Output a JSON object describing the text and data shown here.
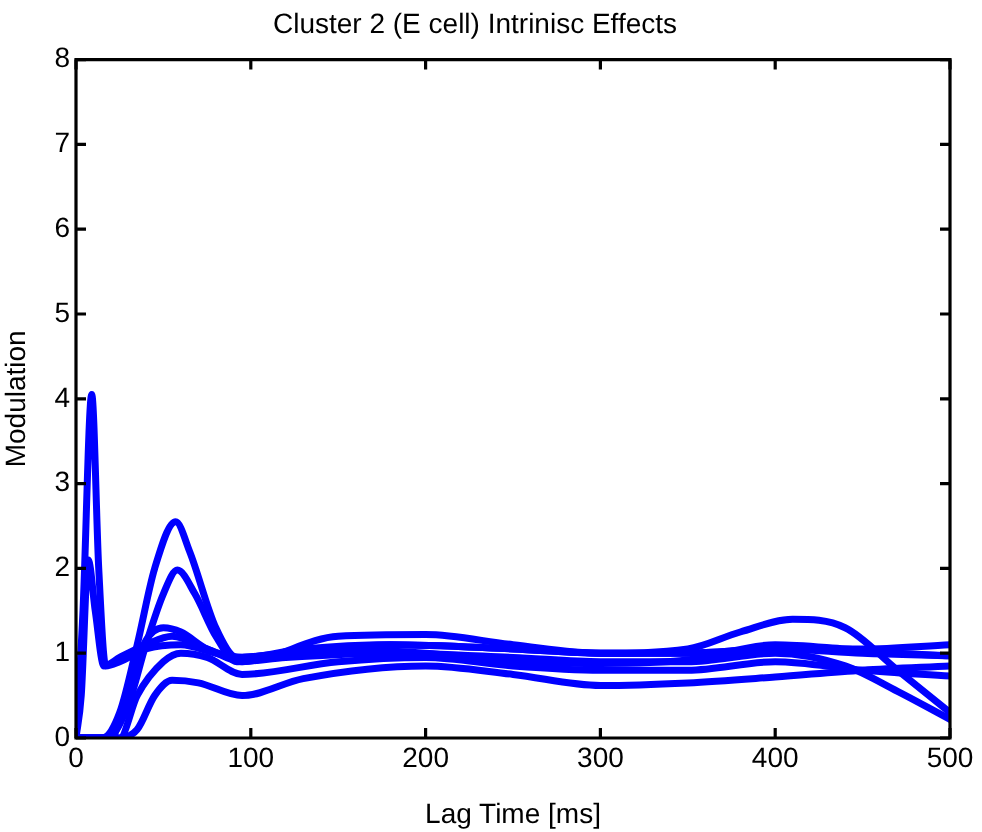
{
  "chart_data": {
    "type": "line",
    "title": "Cluster 2 (E cell) Intrinisc Effects",
    "xlabel": "Lag Time [ms]",
    "ylabel": "Modulation",
    "xlim": [
      0,
      500
    ],
    "xticks": [
      0,
      100,
      200,
      300,
      400,
      500
    ],
    "ylim": [
      0,
      8
    ],
    "yticks": [
      0,
      1,
      2,
      3,
      4,
      5,
      6,
      7,
      8
    ],
    "grid": false,
    "legend": false,
    "marker": "none",
    "line_style": "solid",
    "series": [
      {
        "color": "#0000ff",
        "x": [
          0,
          4,
          9,
          13,
          17,
          25,
          40,
          60,
          80,
          95,
          130,
          180,
          250,
          300,
          350,
          400,
          450,
          500
        ],
        "values": [
          0,
          1.5,
          4.05,
          2,
          0.85,
          0.9,
          1.05,
          1.1,
          1.0,
          0.95,
          1.05,
          1.1,
          1.05,
          1.0,
          1.0,
          1.05,
          1.05,
          1.1
        ]
      },
      {
        "color": "#0000ff",
        "x": [
          0,
          3,
          7,
          11,
          16,
          25,
          40,
          55,
          75,
          95,
          150,
          200,
          250,
          300,
          350,
          400,
          450,
          500
        ],
        "values": [
          0,
          0.5,
          2.1,
          1.5,
          0.85,
          0.95,
          1.1,
          1.2,
          1.05,
          0.9,
          1.2,
          1.22,
          1.1,
          1.0,
          1.0,
          1.05,
          1.0,
          0.97
        ]
      },
      {
        "color": "#0000ff",
        "x": [
          0,
          15,
          25,
          35,
          45,
          57,
          65,
          80,
          92,
          120,
          180,
          250,
          300,
          350,
          380,
          410,
          440,
          470,
          500
        ],
        "values": [
          0,
          0,
          0.3,
          1.1,
          2.0,
          2.55,
          2.2,
          1.3,
          0.95,
          1.0,
          1.1,
          1.05,
          1.0,
          1.05,
          1.25,
          1.4,
          1.3,
          0.8,
          0.3
        ]
      },
      {
        "color": "#0000ff",
        "x": [
          0,
          18,
          30,
          40,
          50,
          58,
          68,
          80,
          92,
          120,
          180,
          250,
          300,
          350,
          400,
          440,
          470,
          500
        ],
        "values": [
          0,
          0,
          0.4,
          1.1,
          1.7,
          1.98,
          1.7,
          1.2,
          0.9,
          0.95,
          1.0,
          0.95,
          0.9,
          0.9,
          1.0,
          0.85,
          0.55,
          0.22
        ]
      },
      {
        "color": "#0000ff",
        "x": [
          0,
          20,
          30,
          40,
          50,
          60,
          75,
          95,
          150,
          200,
          250,
          300,
          350,
          400,
          440,
          470,
          500
        ],
        "values": [
          0,
          0,
          0.6,
          1.15,
          1.3,
          1.25,
          1.05,
          0.95,
          1.05,
          1.0,
          0.9,
          0.88,
          0.92,
          1.1,
          1.05,
          1.0,
          0.97
        ]
      },
      {
        "color": "#0000ff",
        "x": [
          0,
          25,
          35,
          50,
          60,
          75,
          95,
          150,
          200,
          250,
          300,
          350,
          400,
          450,
          500
        ],
        "values": [
          0,
          0,
          0.5,
          0.9,
          1.0,
          0.95,
          0.75,
          0.9,
          0.95,
          0.85,
          0.8,
          0.8,
          0.9,
          0.8,
          0.73
        ]
      },
      {
        "color": "#0000ff",
        "x": [
          0,
          25,
          35,
          45,
          55,
          70,
          95,
          130,
          200,
          250,
          300,
          350,
          400,
          450,
          500
        ],
        "values": [
          0,
          0,
          0.1,
          0.5,
          0.68,
          0.65,
          0.5,
          0.7,
          0.85,
          0.75,
          0.62,
          0.65,
          0.72,
          0.8,
          0.85
        ]
      }
    ]
  }
}
